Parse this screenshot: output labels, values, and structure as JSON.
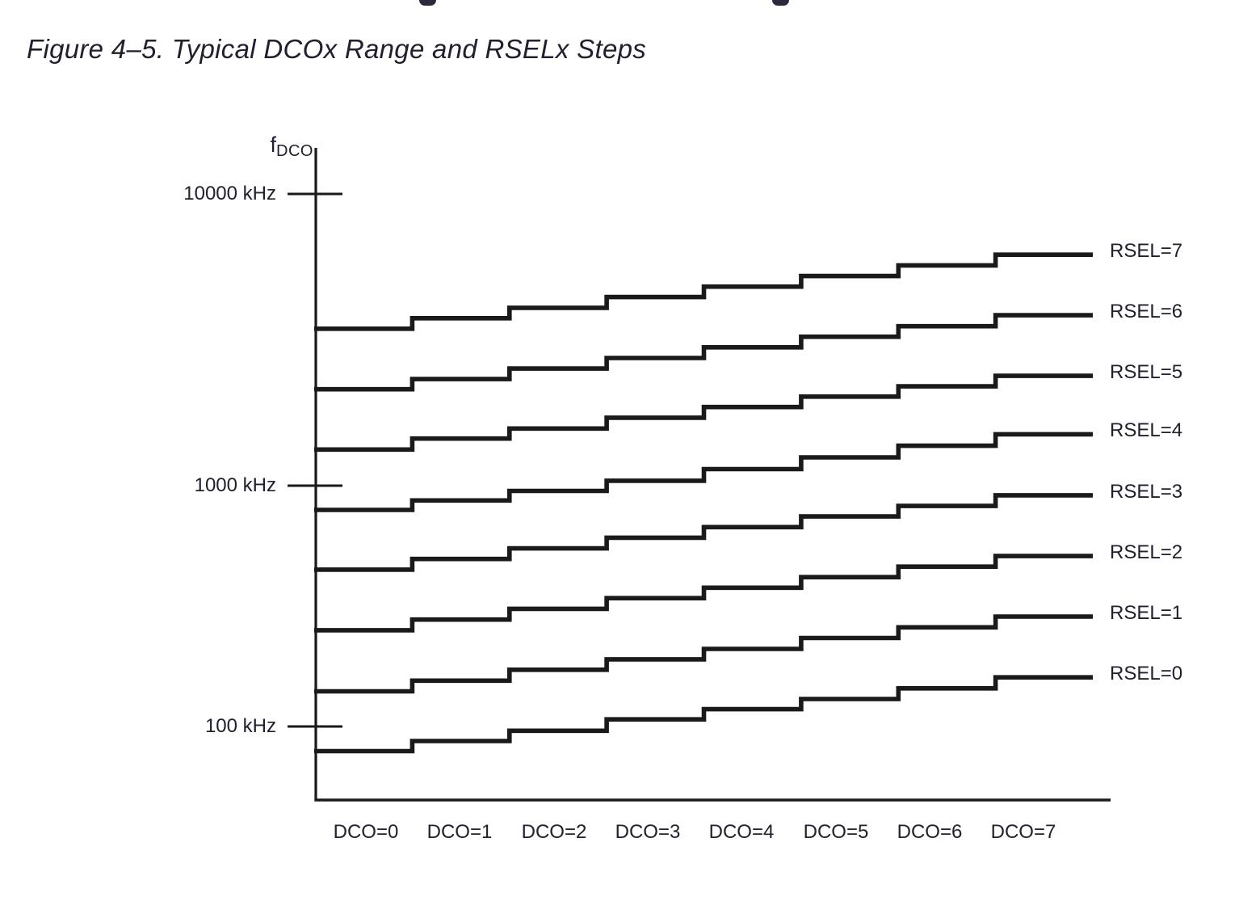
{
  "figure": {
    "title": "Figure 4–5. Typical DCOx Range and RSELx Steps"
  },
  "colors": {
    "background": "#ffffff",
    "line": "#1a1a1a",
    "text": "#20202e"
  },
  "chart_data": {
    "type": "line",
    "line_style": "staircase-steps",
    "title": "Typical DCOx Range and RSELx Steps",
    "categories": [
      "DCO=0",
      "DCO=1",
      "DCO=2",
      "DCO=3",
      "DCO=4",
      "DCO=5",
      "DCO=6",
      "DCO=7"
    ],
    "xlabel": "",
    "ylabel": "fDCO",
    "y_axis": {
      "symbol": "f",
      "symbol_subscript": "DCO",
      "unit": "kHz",
      "scale": "log",
      "ticks": [
        {
          "label": "10000 kHz",
          "kHz": 10000
        },
        {
          "label": "1000 kHz",
          "kHz": 1000
        },
        {
          "label": "100 kHz",
          "kHz": 100
        }
      ],
      "range_kHz": [
        50,
        14000
      ]
    },
    "grid": false,
    "legend_position": "right-of-lines",
    "series": [
      {
        "name": "RSEL=7",
        "approx_values_kHz": [
          3450,
          3750,
          4070,
          4430,
          4810,
          5230,
          5690,
          6190
        ]
      },
      {
        "name": "RSEL=6",
        "approx_values_kHz": [
          2140,
          2320,
          2520,
          2740,
          2980,
          3240,
          3520,
          3840
        ]
      },
      {
        "name": "RSEL=5",
        "approx_values_kHz": [
          1330,
          1450,
          1570,
          1710,
          1860,
          2020,
          2190,
          2380
        ]
      },
      {
        "name": "RSEL=4",
        "approx_values_kHz": [
          793,
          868,
          951,
          1040,
          1140,
          1250,
          1370,
          1500
        ]
      },
      {
        "name": "RSEL=3",
        "approx_values_kHz": [
          448,
          496,
          549,
          608,
          673,
          745,
          824,
          912
        ]
      },
      {
        "name": "RSEL=2",
        "approx_values_kHz": [
          251,
          278,
          308,
          341,
          377,
          417,
          461,
          510
        ]
      },
      {
        "name": "RSEL=1",
        "approx_values_kHz": [
          140,
          155,
          172,
          190,
          210,
          233,
          258,
          286
        ]
      },
      {
        "name": "RSEL=0",
        "approx_values_kHz": [
          79,
          87,
          96,
          107,
          118,
          130,
          144,
          160
        ]
      }
    ]
  }
}
